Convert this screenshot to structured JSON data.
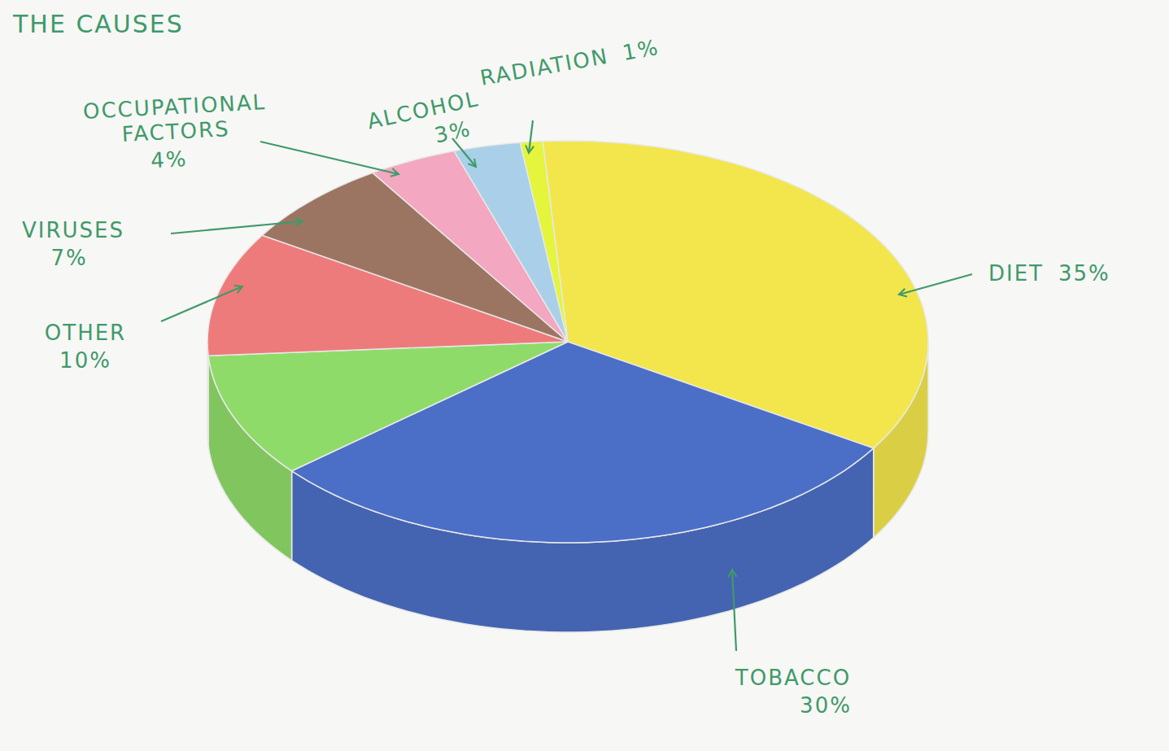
{
  "chart_data": {
    "type": "pie",
    "title": "THE CAUSES",
    "categories": [
      "DIET",
      "TOBACCO",
      null,
      "OTHER",
      "VIRUSES",
      "OCCUPATIONAL FACTORS",
      "ALCOHOL",
      "RADIATION"
    ],
    "values": [
      35,
      30,
      10,
      10,
      7,
      4,
      3,
      1
    ],
    "value_labels": [
      "35%",
      "30%",
      null,
      "10%",
      "7%",
      "4%",
      "3%",
      "1%"
    ],
    "data_labels": true,
    "colors": [
      "#f2e64c",
      "#4b6fc6",
      "#8fdb6a",
      "#ee7b7b",
      "#9c7562",
      "#f3a7c1",
      "#a9d0e8",
      "#e4f53b"
    ]
  }
}
